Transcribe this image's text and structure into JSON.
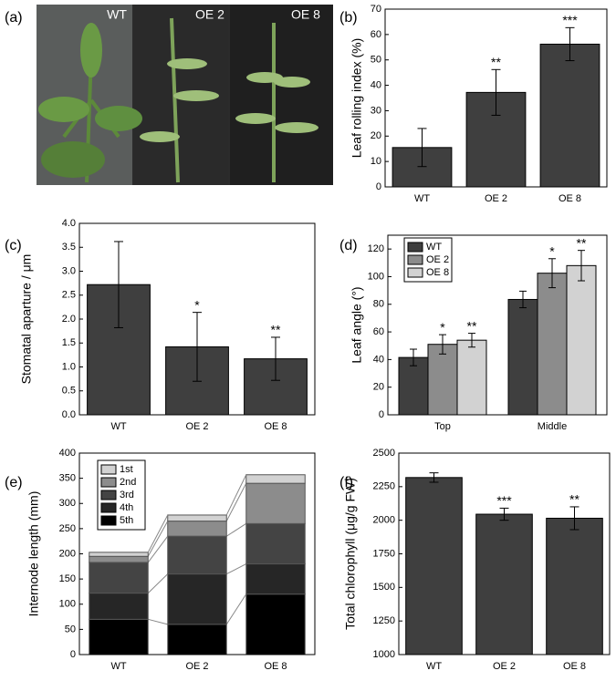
{
  "photo": {
    "label": "(a)",
    "tags": [
      "WT",
      "OE 2",
      "OE 8"
    ]
  },
  "chart_data": [
    {
      "type": "bar",
      "label": "(b)",
      "ylabel": "Leaf rolling index (%)",
      "categories": [
        "WT",
        "OE 2",
        "OE 8"
      ],
      "values": [
        15.5,
        37.2,
        56.2
      ],
      "errors": [
        7.5,
        9,
        6.5
      ],
      "annotations": [
        null,
        "**",
        "***"
      ],
      "color": "#3f3f3f",
      "ylim": [
        0,
        70
      ],
      "yticks": [
        0,
        10,
        20,
        30,
        40,
        50,
        60,
        70
      ]
    },
    {
      "type": "bar",
      "label": "(c)",
      "ylabel": "Stomatal aparture / μm",
      "categories": [
        "WT",
        "OE 2",
        "OE 8"
      ],
      "values": [
        2.72,
        1.42,
        1.17
      ],
      "errors": [
        0.9,
        0.72,
        0.45
      ],
      "annotations": [
        null,
        "*",
        "**"
      ],
      "color": "#3f3f3f",
      "ylim": [
        0,
        4
      ],
      "yticks": [
        {
          "value": 0,
          "label": "0.0"
        },
        0.5,
        {
          "value": 1,
          "label": "1.0"
        },
        1.5,
        {
          "value": 2,
          "label": "2.0"
        },
        2.5,
        {
          "value": 3,
          "label": "3.0"
        },
        3.5,
        {
          "value": 4,
          "label": "4.0"
        }
      ]
    },
    {
      "type": "grouped",
      "label": "(d)",
      "ylabel": "Leaf angle (°)",
      "categories": [
        "Top",
        "Middle"
      ],
      "legend": "upper-left",
      "ylim": [
        0,
        130
      ],
      "yticks": [
        0,
        20,
        40,
        60,
        80,
        100,
        120
      ],
      "series": [
        {
          "name": "WT",
          "color": "#3f3f3f",
          "values": [
            41.5,
            83.5
          ],
          "errors": [
            6,
            6
          ]
        },
        {
          "name": "OE 2",
          "color": "#8c8c8c",
          "values": [
            51,
            102.5
          ],
          "errors": [
            7,
            10.5
          ],
          "annotations": [
            "*",
            "*"
          ]
        },
        {
          "name": "OE 8",
          "color": "#d2d2d2",
          "values": [
            54,
            108
          ],
          "errors": [
            5,
            11
          ],
          "annotations": [
            "**",
            "**"
          ]
        }
      ]
    },
    {
      "type": "stacked",
      "label": "(e)",
      "ylabel": "Internode length (mm)",
      "categories": [
        "WT",
        "OE 2",
        "OE 8"
      ],
      "legend": "upper-left",
      "ylim": [
        0,
        400
      ],
      "yticks": [
        0,
        50,
        100,
        150,
        200,
        250,
        300,
        350,
        400
      ],
      "series": [
        {
          "name": "1st",
          "color": "#d2d2d2",
          "values": [
            8,
            12,
            17
          ]
        },
        {
          "name": "2nd",
          "color": "#8c8c8c",
          "values": [
            12,
            30,
            80
          ]
        },
        {
          "name": "3rd",
          "color": "#444444",
          "values": [
            61,
            75,
            80
          ]
        },
        {
          "name": "4th",
          "color": "#262626",
          "values": [
            52,
            100,
            60
          ]
        },
        {
          "name": "5th",
          "color": "#000000",
          "values": [
            70,
            60,
            120
          ]
        }
      ]
    },
    {
      "type": "bar",
      "label": "(f)",
      "ylabel": "Total chlorophyll (μg/g FW)",
      "categories": [
        "WT",
        "OE 2",
        "OE 8"
      ],
      "values": [
        2318,
        2045,
        2015
      ],
      "errors": [
        35,
        45,
        85
      ],
      "annotations": [
        null,
        "***",
        "**"
      ],
      "color": "#3f3f3f",
      "ylim": [
        1000,
        2500
      ],
      "yticks": [
        1000,
        1250,
        1500,
        1750,
        2000,
        2250,
        2500
      ]
    }
  ]
}
